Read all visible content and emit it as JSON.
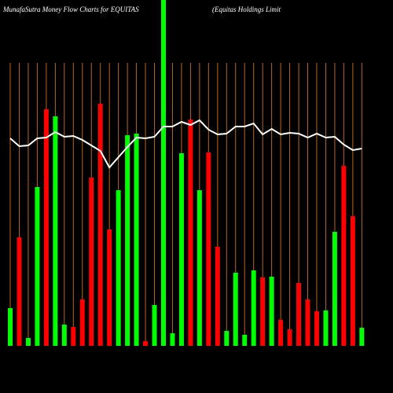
{
  "chart_data": {
    "type": "bar",
    "title": "MunafaSutra  Money Flow  Charts for EQUITAS",
    "subtitle": "(Equitas Holdings Limit",
    "categories": [
      null,
      null,
      null,
      null,
      null,
      null,
      null,
      null,
      null,
      null,
      null,
      null,
      null,
      null,
      null,
      null,
      null,
      null,
      null,
      null,
      null,
      null,
      null,
      null,
      null,
      null,
      null,
      null,
      null,
      null,
      null,
      null,
      null,
      null,
      null,
      null,
      null,
      null,
      null,
      null
    ],
    "values": [
      48,
      138,
      10,
      202,
      301,
      292,
      27,
      24,
      59,
      214,
      308,
      148,
      198,
      268,
      270,
      6,
      52,
      440,
      16,
      245,
      288,
      198,
      246,
      126,
      19,
      93,
      14,
      96,
      87,
      88,
      33,
      21,
      80,
      59,
      44,
      45,
      145,
      229,
      165,
      23
    ],
    "colors": [
      "#00ff00",
      "#ff0000",
      "#00ff00",
      "#00ff00",
      "#ff0000",
      "#00ff00",
      "#00ff00",
      "#ff0000",
      "#ff0000",
      "#ff0000",
      "#ff0000",
      "#ff0000",
      "#00ff00",
      "#00ff00",
      "#00ff00",
      "#ff0000",
      "#00ff00",
      "#00ff00",
      "#00ff00",
      "#00ff00",
      "#ff0000",
      "#00ff00",
      "#ff0000",
      "#ff0000",
      "#00ff00",
      "#00ff00",
      "#00ff00",
      "#00ff00",
      "#ff0000",
      "#00ff00",
      "#ff0000",
      "#ff0000",
      "#ff0000",
      "#ff0000",
      "#ff0000",
      "#00ff00",
      "#00ff00",
      "#ff0000",
      "#ff0000",
      "#00ff00"
    ],
    "line": {
      "color": "#ffffff",
      "values": [
        264,
        254,
        255,
        264,
        265,
        272,
        266,
        267,
        262,
        255,
        248,
        227,
        240,
        253,
        265,
        264,
        266,
        279,
        279,
        285,
        281,
        287,
        275,
        269,
        270,
        279,
        279,
        283,
        269,
        276,
        269,
        271,
        270,
        265,
        270,
        265,
        266,
        256,
        249,
        251
      ]
    },
    "ylim": [
      0,
      440
    ],
    "gridcolor": "#b8651a"
  }
}
